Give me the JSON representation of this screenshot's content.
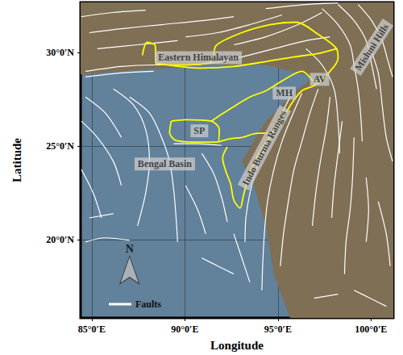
{
  "chart_data": {
    "type": "map",
    "x_label": "Longitude",
    "y_label": "Latitude",
    "xlim": [
      84.4,
      101.2
    ],
    "ylim": [
      15.8,
      32.7
    ],
    "xticks": [
      {
        "value": 85,
        "label": "85°0′E"
      },
      {
        "value": 90,
        "label": "90°0′E"
      },
      {
        "value": 95,
        "label": "95°0′E"
      },
      {
        "value": 100,
        "label": "100°0′E"
      }
    ],
    "yticks": [
      {
        "value": 20,
        "label": "20°0′N"
      },
      {
        "value": 25,
        "label": "25°0′N"
      },
      {
        "value": 30,
        "label": "30°0′N"
      }
    ],
    "grid": true,
    "legend": "lower left",
    "relief": [
      [
        84.4,
        32.7
      ],
      [
        101.2,
        32.7
      ],
      [
        101.2,
        15.8
      ],
      [
        95.65,
        15.8
      ],
      [
        94.78,
        18.15
      ],
      [
        94.35,
        20.73
      ],
      [
        93.71,
        22.89
      ],
      [
        93.06,
        24.18
      ],
      [
        94.35,
        26.34
      ],
      [
        96.08,
        28.06
      ],
      [
        96.94,
        28.71
      ],
      [
        94.35,
        29.35
      ],
      [
        91.42,
        29.35
      ],
      [
        88.75,
        29.14
      ],
      [
        86.59,
        29.01
      ],
      [
        84.4,
        28.84
      ]
    ],
    "series": [
      {
        "name": "Faults",
        "color": "#ffffff",
        "line_style": "solid",
        "lines": [
          [
            [
              84.87,
              31.08
            ],
            [
              86.59,
              31.29
            ],
            [
              88.75,
              31.51
            ],
            [
              90.91,
              31.72
            ],
            [
              92.63,
              31.94
            ]
          ],
          [
            [
              85.3,
              30.22
            ],
            [
              87.46,
              30.43
            ],
            [
              89.61,
              30.65
            ]
          ],
          [
            [
              90.04,
              30.86
            ],
            [
              91.77,
              31.08
            ],
            [
              93.49,
              31.51
            ],
            [
              95.22,
              32.03
            ]
          ],
          [
            [
              92.63,
              30.43
            ],
            [
              94.35,
              30.86
            ],
            [
              96.08,
              31.51
            ],
            [
              97.37,
              32.16
            ]
          ],
          [
            [
              84.44,
              31.94
            ],
            [
              86.16,
              32.16
            ],
            [
              87.89,
              32.28
            ]
          ],
          [
            [
              94.35,
              32.37
            ],
            [
              96.51,
              32.59
            ],
            [
              98.23,
              32.67
            ]
          ],
          [
            [
              84.66,
              29.01
            ],
            [
              86.59,
              29.27
            ],
            [
              88.32,
              29.35
            ],
            [
              90.04,
              29.35
            ],
            [
              91.42,
              29.44
            ],
            [
              93.06,
              29.78
            ],
            [
              94.78,
              30.22
            ],
            [
              96.51,
              30.65
            ],
            [
              97.8,
              30.86
            ]
          ],
          [
            [
              84.66,
              28.71
            ],
            [
              86.59,
              28.92
            ],
            [
              88.32,
              29.01
            ]
          ],
          [
            [
              97.37,
              32.37
            ],
            [
              98.23,
              31.51
            ],
            [
              98.88,
              30.43
            ],
            [
              99.09,
              29.35
            ],
            [
              99.31,
              28.06
            ],
            [
              99.44,
              26.77
            ],
            [
              99.53,
              25.26
            ]
          ],
          [
            [
              98.23,
              32.59
            ],
            [
              99.09,
              31.72
            ],
            [
              99.74,
              30.65
            ],
            [
              100.04,
              29.35
            ],
            [
              100.3,
              28.06
            ]
          ],
          [
            [
              99.31,
              32.59
            ],
            [
              100.04,
              31.72
            ],
            [
              100.6,
              30.65
            ],
            [
              100.91,
              29.57
            ],
            [
              101.16,
              28.71
            ]
          ],
          [
            [
              99.96,
              30.22
            ],
            [
              100.39,
              28.92
            ],
            [
              100.6,
              27.2
            ],
            [
              100.82,
              25.47
            ],
            [
              101.16,
              24.18
            ]
          ],
          [
            [
              96.51,
              30.22
            ],
            [
              97.37,
              29.35
            ],
            [
              98.02,
              28.06
            ],
            [
              98.23,
              26.34
            ],
            [
              98.32,
              24.61
            ]
          ],
          [
            [
              95.65,
              27.63
            ],
            [
              95.0,
              26.34
            ],
            [
              94.35,
              25.04
            ],
            [
              93.84,
              23.75
            ],
            [
              93.49,
              22.46
            ],
            [
              93.28,
              21.16
            ],
            [
              93.23,
              19.87
            ]
          ],
          [
            [
              96.29,
              27.84
            ],
            [
              95.73,
              26.55
            ],
            [
              95.22,
              25.26
            ],
            [
              94.78,
              23.75
            ],
            [
              94.44,
              22.03
            ],
            [
              94.27,
              20.3
            ],
            [
              94.18,
              18.58
            ],
            [
              94.14,
              17.28
            ]
          ],
          [
            [
              97.16,
              28.06
            ],
            [
              96.72,
              26.77
            ],
            [
              96.29,
              25.26
            ],
            [
              95.86,
              23.75
            ],
            [
              95.56,
              22.03
            ],
            [
              95.3,
              20.3
            ],
            [
              95.13,
              18.58
            ]
          ],
          [
            [
              97.8,
              27.63
            ],
            [
              97.59,
              25.91
            ],
            [
              97.28,
              24.18
            ],
            [
              97.03,
              22.46
            ],
            [
              96.85,
              20.73
            ]
          ],
          [
            [
              98.45,
              26.34
            ],
            [
              98.23,
              24.61
            ],
            [
              98.02,
              22.89
            ],
            [
              97.89,
              21.16
            ]
          ],
          [
            [
              99.09,
              25.47
            ],
            [
              99.01,
              23.32
            ],
            [
              98.88,
              21.59
            ],
            [
              98.66,
              19.87
            ],
            [
              98.58,
              18.15
            ]
          ],
          [
            [
              99.74,
              23.32
            ],
            [
              99.87,
              21.59
            ],
            [
              99.74,
              19.87
            ]
          ],
          [
            [
              89.4,
              25.13
            ],
            [
              90.69,
              25.13
            ],
            [
              91.98,
              25.04
            ]
          ],
          [
            [
              87.03,
              27.63
            ],
            [
              88.1,
              26.77
            ],
            [
              88.75,
              25.47
            ],
            [
              89.18,
              24.18
            ],
            [
              89.4,
              22.67
            ],
            [
              89.53,
              21.16
            ],
            [
              89.61,
              19.87
            ]
          ],
          [
            [
              86.16,
              28.06
            ],
            [
              87.24,
              27.2
            ],
            [
              87.89,
              25.91
            ],
            [
              88.1,
              24.18
            ],
            [
              87.89,
              22.46
            ],
            [
              87.46,
              20.73
            ]
          ],
          [
            [
              90.91,
              24.61
            ],
            [
              91.55,
              23.53
            ],
            [
              91.98,
              22.24
            ],
            [
              92.28,
              20.95
            ]
          ],
          [
            [
              84.44,
              26.34
            ],
            [
              85.3,
              25.47
            ],
            [
              86.16,
              24.18
            ],
            [
              86.59,
              22.89
            ]
          ],
          [
            [
              84.66,
              27.63
            ],
            [
              85.73,
              26.77
            ],
            [
              86.59,
              25.47
            ]
          ],
          [
            [
              90.04,
              22.89
            ],
            [
              90.69,
              21.59
            ],
            [
              91.12,
              20.3
            ]
          ],
          [
            [
              84.66,
              19.87
            ],
            [
              85.73,
              20.09
            ],
            [
              87.03,
              19.96
            ]
          ],
          [
            [
              84.87,
              21.16
            ],
            [
              86.16,
              21.38
            ]
          ],
          [
            [
              92.63,
              20.3
            ],
            [
              93.06,
              19.01
            ],
            [
              93.49,
              17.72
            ]
          ],
          [
            [
              90.91,
              19.01
            ],
            [
              91.77,
              18.58
            ],
            [
              92.63,
              18.15
            ]
          ],
          [
            [
              84.44,
              23.75
            ],
            [
              85.09,
              22.46
            ],
            [
              85.52,
              21.16
            ]
          ],
          [
            [
              100.39,
              22.03
            ],
            [
              100.82,
              20.3
            ],
            [
              101.03,
              18.58
            ]
          ],
          [
            [
              99.09,
              17.28
            ],
            [
              99.96,
              16.85
            ],
            [
              100.82,
              16.42
            ]
          ],
          [
            [
              96.94,
              16.85
            ],
            [
              98.23,
              17.07
            ]
          ]
        ]
      },
      {
        "color": "#ffff00",
        "line_style": "solid",
        "lines": [
          [
            [
              87.72,
              29.87
            ],
            [
              87.97,
              30.56
            ],
            [
              88.41,
              30.39
            ],
            [
              88.45,
              29.44
            ],
            [
              90.04,
              29.35
            ],
            [
              91.42,
              29.53
            ],
            [
              91.68,
              30.39
            ],
            [
              93.06,
              31.08
            ],
            [
              94.57,
              31.51
            ],
            [
              95.99,
              31.64
            ],
            [
              97.16,
              30.99
            ],
            [
              98.15,
              30.22
            ],
            [
              98.23,
              29.7
            ],
            [
              97.72,
              28.92
            ],
            [
              97.03,
              28.28
            ],
            [
              96.29,
              27.97
            ],
            [
              95.73,
              27.28
            ],
            [
              95.22,
              26.42
            ],
            [
              94.7,
              25.69
            ],
            [
              94.18,
              24.96
            ],
            [
              93.75,
              24.18
            ],
            [
              93.41,
              23.32
            ],
            [
              93.15,
              22.37
            ],
            [
              92.97,
              21.68
            ],
            [
              92.63,
              22.11
            ],
            [
              92.46,
              22.97
            ],
            [
              92.2,
              23.66
            ],
            [
              92.03,
              24.35
            ],
            [
              92.28,
              24.96
            ]
          ],
          [
            [
              89.27,
              26.34
            ],
            [
              90.04,
              26.42
            ],
            [
              91.42,
              26.34
            ],
            [
              91.85,
              25.91
            ],
            [
              91.77,
              25.22
            ],
            [
              90.47,
              25.22
            ],
            [
              89.53,
              25.3
            ],
            [
              89.18,
              25.73
            ],
            [
              89.27,
              26.34
            ]
          ],
          [
            [
              91.42,
              26.34
            ],
            [
              92.41,
              26.98
            ],
            [
              93.49,
              27.63
            ],
            [
              94.35,
              27.97
            ],
            [
              95.22,
              28.49
            ],
            [
              96.29,
              29.01
            ],
            [
              97.03,
              28.28
            ]
          ],
          [
            [
              88.45,
              29.44
            ],
            [
              90.91,
              29.18
            ],
            [
              92.63,
              29.27
            ],
            [
              94.35,
              29.53
            ],
            [
              95.86,
              29.78
            ],
            [
              97.16,
              29.96
            ],
            [
              98.15,
              30.22
            ]
          ],
          [
            [
              91.77,
              25.22
            ],
            [
              92.41,
              25.39
            ],
            [
              93.06,
              25.47
            ],
            [
              93.92,
              25.69
            ],
            [
              94.7,
              25.69
            ]
          ]
        ]
      }
    ],
    "annotations": [
      {
        "text": "Eastern Himalayan",
        "at": [
          90.73,
          29.74
        ]
      },
      {
        "text": "Mishmi Hills",
        "at": [
          100.04,
          30.3
        ]
      },
      {
        "text": "AV",
        "at": [
          97.24,
          28.58
        ]
      },
      {
        "text": "MH",
        "at": [
          95.34,
          27.84
        ]
      },
      {
        "text": "SP",
        "at": [
          90.78,
          25.82
        ]
      },
      {
        "text": "Indo Burma Ranges",
        "at": [
          94.27,
          24.91
        ]
      },
      {
        "text": "Bengal Basin",
        "at": [
          88.92,
          24.05
        ]
      }
    ],
    "north_arrow": {
      "text": "N",
      "at": [
        87.03,
        18.36
      ]
    }
  }
}
